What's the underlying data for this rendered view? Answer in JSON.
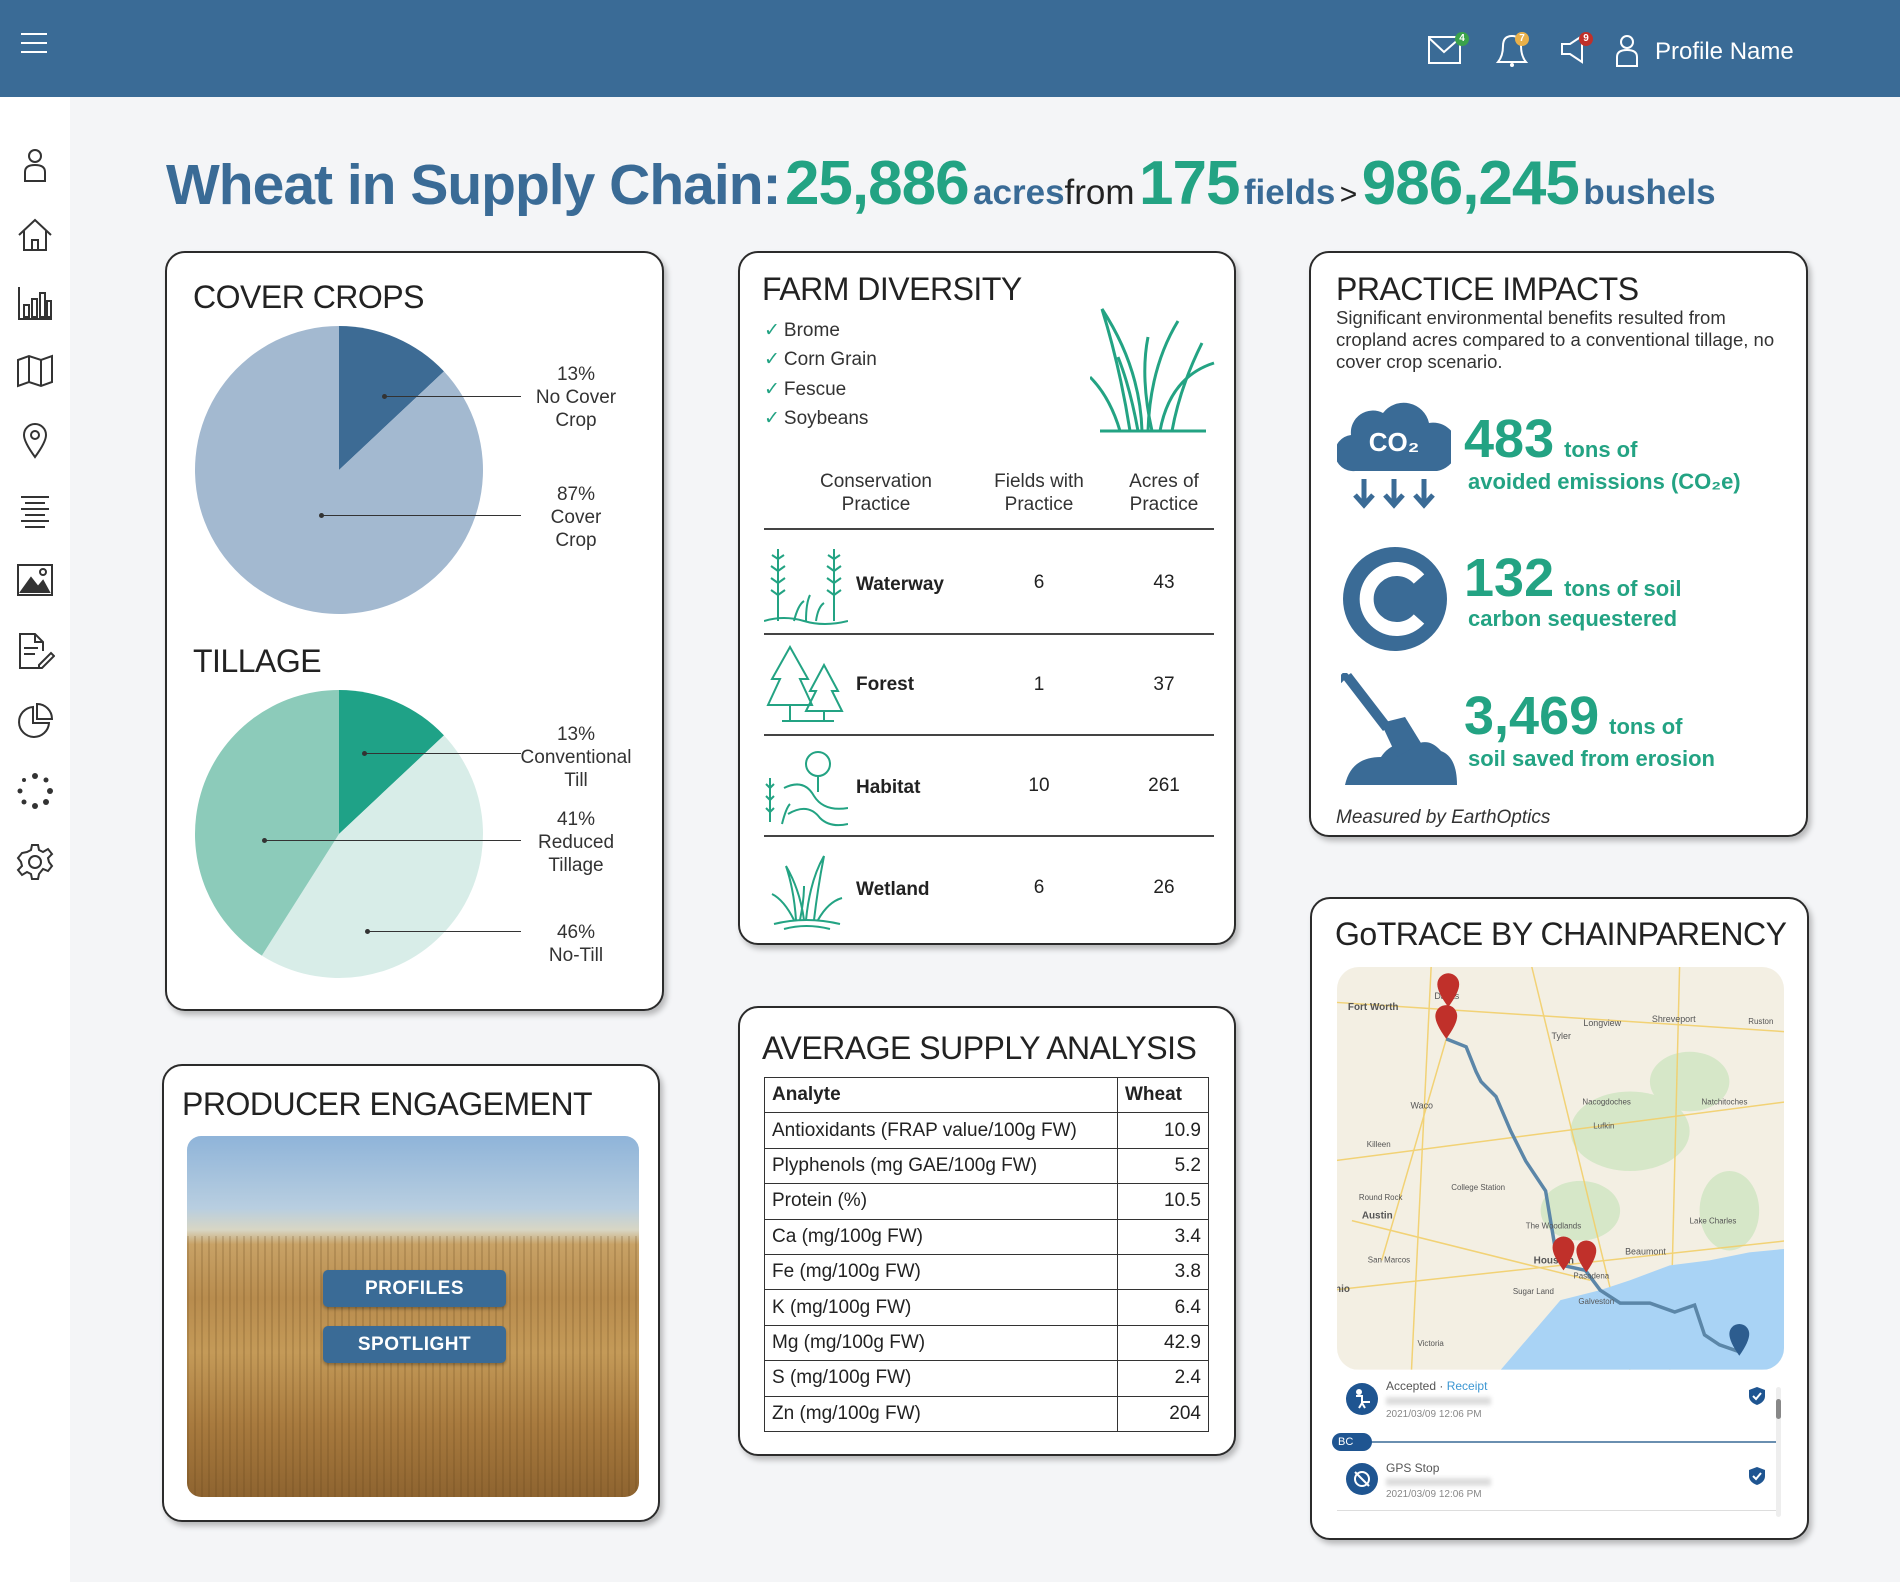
{
  "header": {
    "profile_name": "Profile Name",
    "badges": {
      "mail": "4",
      "bell": "7",
      "announce": "9"
    },
    "colors": {
      "bar": "#3a6b96",
      "mail_badge": "#3aa24a",
      "bell_badge": "#e8b04a",
      "announce_badge": "#c0302a"
    }
  },
  "sidebar": {
    "items": [
      "user-icon",
      "home-icon",
      "bar-chart-icon",
      "map-icon",
      "location-pin-icon",
      "align-center-icon",
      "image-icon",
      "document-edit-icon",
      "pie-chart-icon",
      "loading-icon",
      "gear-icon"
    ]
  },
  "headline": {
    "prefix": "Wheat in Supply Chain:",
    "acres": "25,886",
    "acres_label": "acres",
    "from": "from",
    "fields": "175",
    "fields_label": "fields",
    "sep": ">",
    "bushels": "986,245",
    "bushels_label": "bushels",
    "colors": {
      "blue": "#3a6b96",
      "green": "#23a383"
    }
  },
  "cover_crops": {
    "title": "COVER CROPS",
    "slices": [
      {
        "pct": "13%",
        "label1": "No Cover",
        "label2": "Crop",
        "value": 13,
        "color": "#3d6b94"
      },
      {
        "pct": "87%",
        "label1": "Cover",
        "label2": "Crop",
        "value": 87,
        "color": "#a3b9d0"
      }
    ]
  },
  "tillage": {
    "title": "TILLAGE",
    "slices": [
      {
        "pct": "13%",
        "label1": "Conventional",
        "label2": "Till",
        "value": 13,
        "color": "#1fa287"
      },
      {
        "pct": "46%",
        "label1": "No-Till",
        "label2": "",
        "value": 46,
        "color": "#d8ede8"
      },
      {
        "pct": "41%",
        "label1": "Reduced",
        "label2": "Tillage",
        "value": 41,
        "color": "#8ccbba"
      }
    ]
  },
  "farm_diversity": {
    "title": "FARM DIVERSITY",
    "crops": [
      "Brome",
      "Corn Grain",
      "Fescue",
      "Soybeans"
    ],
    "check": "✓",
    "headers": [
      [
        "Conservation",
        "Practice"
      ],
      [
        "Fields with",
        "Practice"
      ],
      [
        "Acres of",
        "Practice"
      ]
    ],
    "rows": [
      {
        "name": "Waterway",
        "fields": "6",
        "acres": "43"
      },
      {
        "name": "Forest",
        "fields": "1",
        "acres": "37"
      },
      {
        "name": "Habitat",
        "fields": "10",
        "acres": "261"
      },
      {
        "name": "Wetland",
        "fields": "6",
        "acres": "26"
      }
    ]
  },
  "practice_impacts": {
    "title": "PRACTICE IMPACTS",
    "description": "Significant environmental benefits resulted from cropland acres compared to a conventional tillage, no cover crop scenario.",
    "items": [
      {
        "value": "483",
        "unit": "tons of",
        "desc": "avoided emissions (CO₂e)",
        "icon_text": "CO₂"
      },
      {
        "value": "132",
        "unit": "tons of soil",
        "desc": "carbon sequestered"
      },
      {
        "value": "3,469",
        "unit": "tons of",
        "desc": "soil saved from erosion"
      }
    ],
    "footer": "Measured by EarthOptics"
  },
  "producer": {
    "title": "PRODUCER ENGAGEMENT",
    "buttons": [
      "PROFILES",
      "SPOTLIGHT"
    ]
  },
  "supply": {
    "title": "AVERAGE SUPPLY ANALYSIS",
    "headers": [
      "Analyte",
      "Wheat"
    ],
    "rows": [
      [
        "Antioxidants (FRAP value/100g FW)",
        "10.9"
      ],
      [
        "Plyphenols (mg GAE/100g FW)",
        "5.2"
      ],
      [
        "Protein (%)",
        "10.5"
      ],
      [
        "Ca (mg/100g FW)",
        "3.4"
      ],
      [
        "Fe (mg/100g FW)",
        "3.8"
      ],
      [
        "K (mg/100g FW)",
        "6.4"
      ],
      [
        "Mg (mg/100g FW)",
        "42.9"
      ],
      [
        "S (mg/100g FW)",
        "2.4"
      ],
      [
        "Zn (mg/100g FW)",
        "204"
      ]
    ]
  },
  "gotrace": {
    "title": "GoTRACE BY CHAINPARENCY",
    "map_labels": [
      "Fort Worth",
      "Dallas",
      "Longview",
      "Tyler",
      "Shreveport",
      "Ruston",
      "Waco",
      "Nacogdoches",
      "Natchitoches",
      "Lufkin",
      "Killeen",
      "College Station",
      "Round Rock",
      "Austin",
      "The Woodlands",
      "Lake Charles",
      "Beaumont",
      "Houston",
      "Pasadena",
      "San Marcos",
      "Sugar Land",
      "Galveston",
      "Victoria",
      "nio"
    ],
    "events": [
      {
        "status": "Accepted",
        "sep": " · ",
        "link": "Receipt",
        "time": "2021/03/09 12:06 PM"
      },
      {
        "status": "GPS Stop",
        "time": "2021/03/09 12:06 PM"
      }
    ],
    "pill": "BC"
  }
}
